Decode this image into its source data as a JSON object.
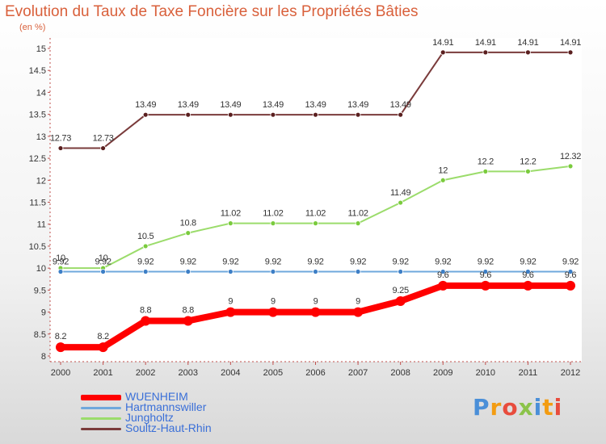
{
  "chart_data": {
    "type": "line",
    "title": "Evolution du Taux de Taxe Foncière sur les Propriétés Bâties",
    "ylabel": "(en %)",
    "xlabel": "",
    "ylim": [
      8,
      15
    ],
    "yticks": [
      "8",
      "8.5",
      "9",
      "9.5",
      "10",
      "10.5",
      "11",
      "11.5",
      "12",
      "12.5",
      "13",
      "13.5",
      "14",
      "14.5",
      "15"
    ],
    "categories": [
      "2000",
      "2001",
      "2002",
      "2003",
      "2004",
      "2005",
      "2006",
      "2007",
      "2008",
      "2009",
      "2010",
      "2011",
      "2012"
    ],
    "series": [
      {
        "name": "WUENHEIM",
        "color": "#ff0000",
        "values": [
          8.2,
          8.2,
          8.8,
          8.8,
          9,
          9,
          9,
          9,
          9.25,
          9.6,
          9.6,
          9.6,
          9.6
        ],
        "labels": [
          "8.2",
          "8.2",
          "8.8",
          "8.8",
          "9",
          "9",
          "9",
          "9",
          "9.25",
          "9.6",
          "9.6",
          "9.6",
          "9.6"
        ]
      },
      {
        "name": "Hartmannswiller",
        "color": "#6fa8dc",
        "values": [
          9.92,
          9.92,
          9.92,
          9.92,
          9.92,
          9.92,
          9.92,
          9.92,
          9.92,
          9.92,
          9.92,
          9.92,
          9.92
        ],
        "labels": [
          "9.92",
          "9.92",
          "9.92",
          "9.92",
          "9.92",
          "9.92",
          "9.92",
          "9.92",
          "9.92",
          "9.92",
          "9.92",
          "9.92",
          "9.92"
        ]
      },
      {
        "name": "Jungholtz",
        "color": "#9bdc6b",
        "values": [
          10,
          10,
          10.5,
          10.8,
          11.02,
          11.02,
          11.02,
          11.02,
          11.49,
          12,
          12.2,
          12.2,
          12.32
        ],
        "labels": [
          "10",
          "10",
          "10.5",
          "10.8",
          "11.02",
          "11.02",
          "11.02",
          "11.02",
          "11.49",
          "12",
          "12.2",
          "12.2",
          "12.32"
        ]
      },
      {
        "name": "Soultz-Haut-Rhin",
        "color": "#7a3b3b",
        "values": [
          12.73,
          12.73,
          13.49,
          13.49,
          13.49,
          13.49,
          13.49,
          13.49,
          13.49,
          14.91,
          14.91,
          14.91,
          14.91
        ],
        "labels": [
          "12.73",
          "12.73",
          "13.49",
          "13.49",
          "13.49",
          "13.49",
          "13.49",
          "13.49",
          "13.49",
          "14.91",
          "14.91",
          "14.91",
          "14.91"
        ]
      }
    ]
  },
  "brand": {
    "letters": [
      "P",
      "r",
      "o",
      "x",
      "i",
      "t",
      "i"
    ],
    "colors": [
      "#4a8fd8",
      "#f39c12",
      "#e84c3d",
      "#8bc34a",
      "#4a8fd8",
      "#f39c12",
      "#e84c3d"
    ]
  }
}
